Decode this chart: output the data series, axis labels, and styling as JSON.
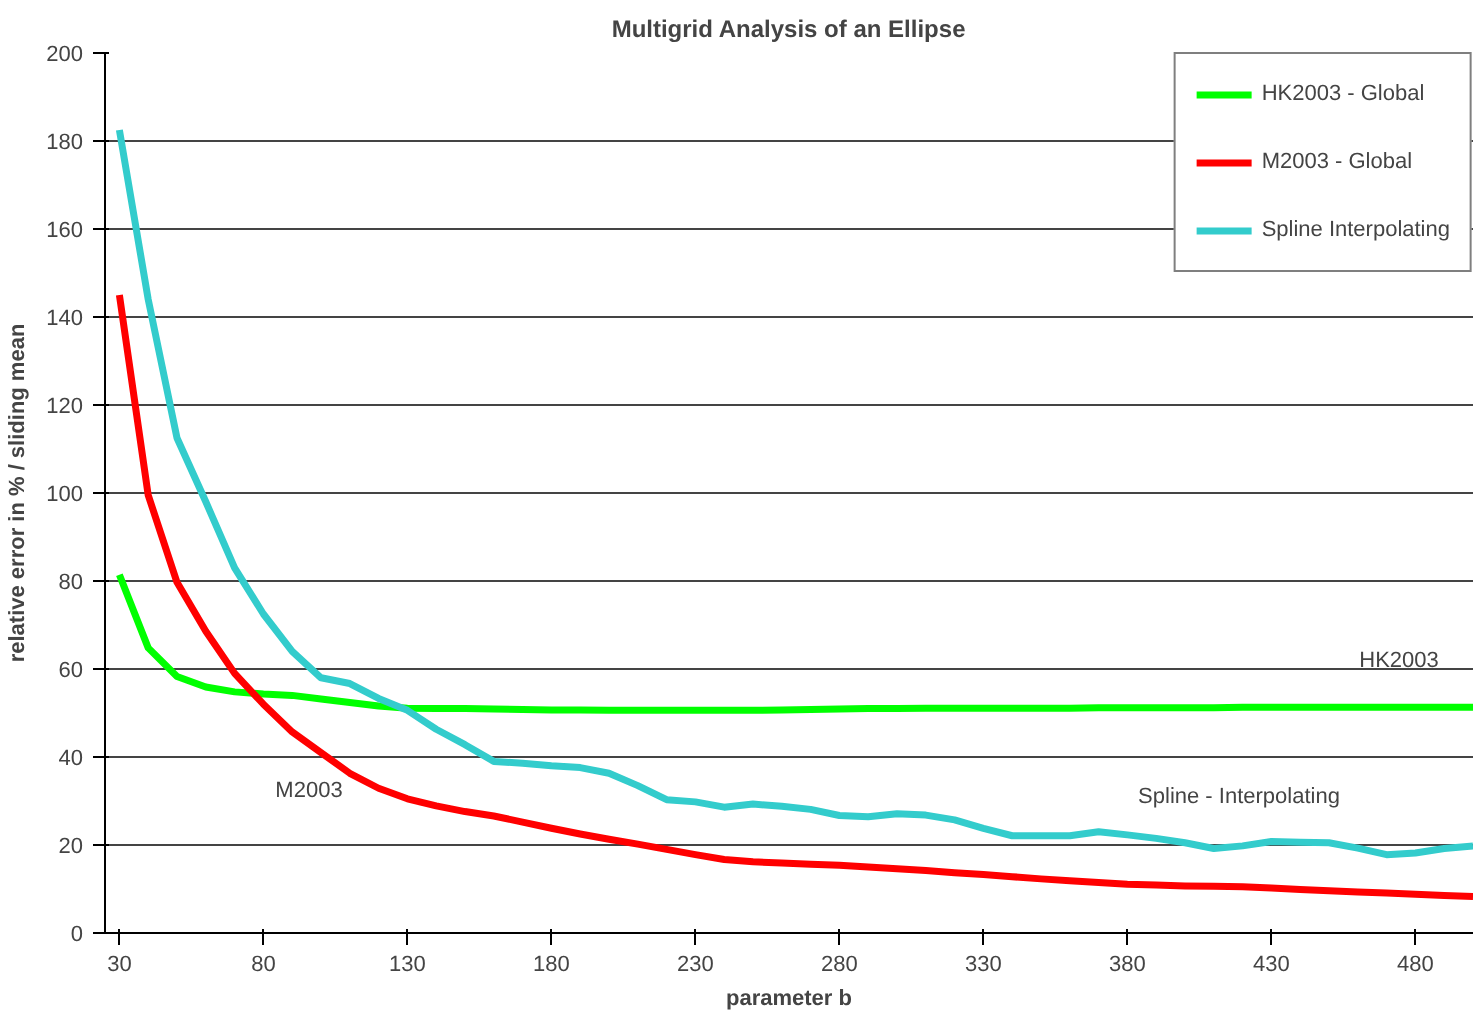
{
  "chart_data": {
    "type": "line",
    "title": "Multigrid Analysis of an Ellipse",
    "xlabel": "parameter b",
    "ylabel": "relative error in % / sliding mean",
    "xlim": [
      25,
      500
    ],
    "xticks": [
      30,
      80,
      130,
      180,
      230,
      280,
      330,
      380,
      430,
      480
    ],
    "ylim": [
      0,
      200
    ],
    "yticks": [
      0,
      20,
      40,
      60,
      80,
      100,
      120,
      140,
      160,
      180,
      200
    ],
    "grid": "y",
    "legend": "top right",
    "marker": "none",
    "line_style": "solid",
    "series": [
      {
        "name": "HK2003 - Global",
        "color": "#00ff00",
        "x": [
          30,
          40,
          50,
          60,
          70,
          80,
          90,
          100,
          110,
          120,
          130,
          140,
          150,
          160,
          170,
          180,
          190,
          200,
          210,
          220,
          230,
          240,
          250,
          260,
          270,
          280,
          290,
          300,
          310,
          320,
          330,
          340,
          350,
          360,
          370,
          380,
          390,
          400,
          410,
          420,
          430,
          440,
          450,
          460,
          470,
          480,
          490,
          500
        ],
        "values": [
          81.4,
          64.8,
          58.3,
          55.9,
          54.8,
          54.3,
          54,
          53.2,
          52.4,
          51.6,
          51.1,
          51,
          51,
          50.9,
          50.8,
          50.7,
          50.7,
          50.6,
          50.6,
          50.6,
          50.6,
          50.6,
          50.6,
          50.7,
          50.8,
          50.9,
          51,
          51,
          51.1,
          51.1,
          51.1,
          51.1,
          51.1,
          51.1,
          51.2,
          51.2,
          51.2,
          51.2,
          51.2,
          51.3,
          51.3,
          51.3,
          51.3,
          51.3,
          51.3,
          51.3,
          51.3,
          51.3
        ]
      },
      {
        "name": "M2003 - Global",
        "color": "#ff0000",
        "x": [
          30,
          40,
          50,
          60,
          70,
          80,
          90,
          100,
          110,
          120,
          130,
          140,
          150,
          160,
          170,
          180,
          190,
          200,
          210,
          220,
          230,
          240,
          250,
          260,
          270,
          280,
          290,
          300,
          310,
          320,
          330,
          340,
          350,
          360,
          370,
          380,
          390,
          400,
          410,
          420,
          430,
          440,
          450,
          460,
          470,
          480,
          490,
          500
        ],
        "values": [
          145,
          99.5,
          79.7,
          68.6,
          59,
          52,
          45.7,
          41,
          36.3,
          32.9,
          30.5,
          28.9,
          27.6,
          26.6,
          25.2,
          23.8,
          22.5,
          21.3,
          20.2,
          19,
          17.8,
          16.7,
          16.2,
          15.9,
          15.6,
          15.4,
          15,
          14.6,
          14.2,
          13.7,
          13.3,
          12.8,
          12.3,
          11.9,
          11.5,
          11.1,
          10.9,
          10.7,
          10.6,
          10.5,
          10.2,
          9.9,
          9.6,
          9.3,
          9.1,
          8.8,
          8.5,
          8.3
        ]
      },
      {
        "name": "Spline Interpolating",
        "color": "#33cccc",
        "x": [
          30,
          40,
          50,
          60,
          70,
          80,
          90,
          100,
          110,
          120,
          130,
          140,
          150,
          160,
          170,
          180,
          190,
          200,
          210,
          220,
          230,
          240,
          250,
          260,
          270,
          280,
          290,
          300,
          310,
          320,
          330,
          340,
          350,
          360,
          370,
          380,
          390,
          400,
          410,
          420,
          430,
          440,
          450,
          460,
          470,
          480,
          490,
          500
        ],
        "values": [
          182.5,
          144,
          112.5,
          98,
          83,
          72.5,
          64,
          58,
          56.7,
          53.3,
          50.6,
          46.3,
          42.8,
          39,
          38.6,
          38,
          37.6,
          36.3,
          33.5,
          30.3,
          29.8,
          28.6,
          29.3,
          28.8,
          28.1,
          26.7,
          26.4,
          27.1,
          26.8,
          25.7,
          23.8,
          22.1,
          22.1,
          22.1,
          23,
          22.3,
          21.5,
          20.5,
          19.2,
          19.8,
          20.8,
          20.6,
          20.5,
          19.3,
          17.8,
          18.2,
          19.2,
          19.8
        ]
      }
    ],
    "annotations": [
      "HK2003",
      "M2003",
      "Spline - Interpolating"
    ]
  }
}
